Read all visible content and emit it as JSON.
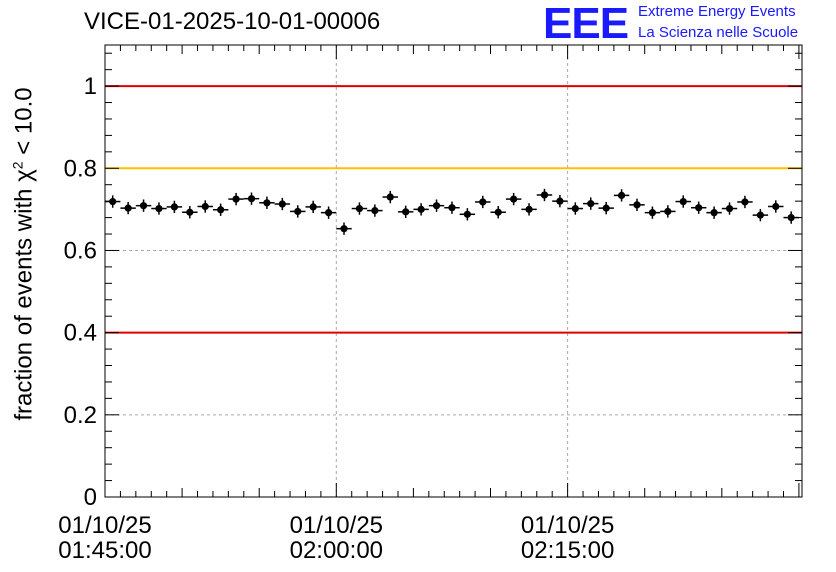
{
  "chart_data": {
    "type": "scatter",
    "title": "VICE-01-2025-10-01-00006",
    "ylabel_prefix": "fraction of events with",
    "ylabel_var": "χ",
    "ylabel_exp": "2",
    "ylabel_suffix": "< 10.0",
    "ylim": [
      0,
      1.1
    ],
    "yticks": [
      "0",
      "0.2",
      "0.4",
      "0.6",
      "0.8",
      "1"
    ],
    "ytick_values": [
      0,
      0.2,
      0.4,
      0.6,
      0.8,
      1.0
    ],
    "xlim_minutes": [
      0,
      45.2
    ],
    "xticks": [
      {
        "minute": 0,
        "date": "01/10/25",
        "time": "01:45:00"
      },
      {
        "minute": 15,
        "date": "01/10/25",
        "time": "02:00:00"
      },
      {
        "minute": 30,
        "date": "01/10/25",
        "time": "02:15:00"
      }
    ],
    "reference_lines": [
      {
        "y": 1.0,
        "color": "#e00000"
      },
      {
        "y": 0.8,
        "color": "#ffc000"
      },
      {
        "y": 0.4,
        "color": "#e00000"
      }
    ],
    "bin_minutes": 1,
    "x_start_minute": 0.5,
    "y_error": 0.015,
    "values": [
      0.719,
      0.703,
      0.709,
      0.702,
      0.706,
      0.693,
      0.707,
      0.699,
      0.725,
      0.726,
      0.716,
      0.713,
      0.695,
      0.706,
      0.692,
      0.653,
      0.702,
      0.697,
      0.73,
      0.694,
      0.7,
      0.709,
      0.704,
      0.688,
      0.718,
      0.693,
      0.725,
      0.7,
      0.735,
      0.72,
      0.702,
      0.714,
      0.703,
      0.734,
      0.711,
      0.692,
      0.695,
      0.719,
      0.704,
      0.692,
      0.702,
      0.718,
      0.686,
      0.707,
      0.68
    ]
  },
  "logo": {
    "letters": "EEE",
    "line1": "Extreme Energy Events",
    "line2": "La Scienza nelle Scuole"
  },
  "colors": {
    "marker": "#000000",
    "grid": "#aaaaaa",
    "logo": "#1a1aff"
  }
}
